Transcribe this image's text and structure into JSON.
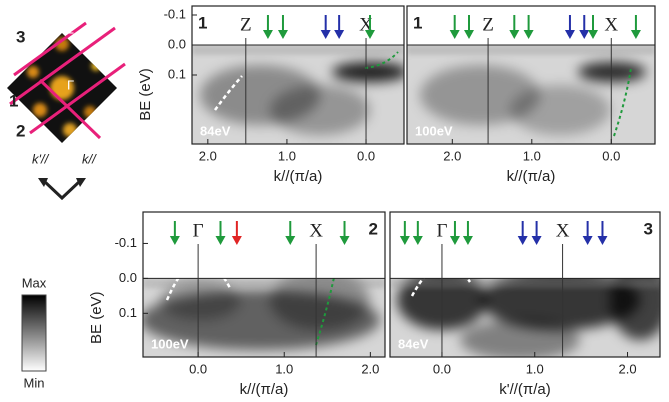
{
  "inset": {
    "cuts": [
      "3",
      "1",
      "2"
    ],
    "points": [
      "Z",
      "X",
      "Γ"
    ],
    "k_perp": "k'//",
    "k_par": "k//"
  },
  "colorbar": {
    "max": "Max",
    "min": "Min"
  },
  "chart_data": [
    {
      "type": "arpes",
      "panel": "1",
      "energy": "84eV",
      "xlabel": "k//(π/a)",
      "ylabel": "BE (eV)",
      "xlim": [
        2.2,
        -0.48
      ],
      "xticks": [
        {
          "value": 2,
          "label": "2.0"
        },
        {
          "value": 1,
          "label": "1.0"
        },
        {
          "value": 0,
          "label": "0.0"
        }
      ],
      "ylim": [
        -0.13,
        0.33
      ],
      "yticks": [
        -0.1,
        {
          "value": 0,
          "label": "0.0"
        },
        0.1
      ],
      "points": [
        {
          "label": "Z",
          "x": 1.52
        },
        {
          "label": "X",
          "x": 0
        }
      ],
      "arrows": [
        {
          "x": 1.24,
          "color": "#1f9a3c"
        },
        {
          "x": 1.05,
          "color": "#1f9a3c"
        },
        {
          "x": 0.51,
          "color": "#2430a8"
        },
        {
          "x": 0.34,
          "color": "#2430a8"
        },
        {
          "x": -0.05,
          "color": "#1f9a3c"
        }
      ]
    },
    {
      "type": "arpes",
      "panel": "1",
      "energy": "100eV",
      "xlabel": "k//(π/a)",
      "xlim": [
        2.57,
        -0.55
      ],
      "xticks": [
        {
          "value": 2,
          "label": "2.0"
        },
        {
          "value": 1,
          "label": "1.0"
        },
        {
          "value": 0,
          "label": "0.0"
        }
      ],
      "ylim": [
        -0.13,
        0.33
      ],
      "points": [
        {
          "label": "Z",
          "x": 1.55
        },
        {
          "label": "X",
          "x": 0
        }
      ],
      "arrows": [
        {
          "x": 1.97,
          "color": "#1f9a3c"
        },
        {
          "x": 1.79,
          "color": "#1f9a3c"
        },
        {
          "x": 1.22,
          "color": "#1f9a3c"
        },
        {
          "x": 1.04,
          "color": "#1f9a3c"
        },
        {
          "x": 0.52,
          "color": "#2430a8"
        },
        {
          "x": 0.34,
          "color": "#2430a8"
        },
        {
          "x": 0.23,
          "color": "#1f9a3c"
        },
        {
          "x": -0.31,
          "color": "#1f9a3c"
        }
      ]
    },
    {
      "type": "arpes",
      "panel": "2",
      "energy": "100eV",
      "xlabel": "k//(π/a)",
      "ylabel": "BE (eV)",
      "xlim": [
        -0.64,
        2.17
      ],
      "xticks": [
        {
          "value": 0,
          "label": "0.0"
        },
        {
          "value": 1,
          "label": "1.0"
        },
        {
          "value": 2,
          "label": "2.0"
        }
      ],
      "ylim": [
        -0.19,
        0.225
      ],
      "yticks": [
        -0.1,
        {
          "value": 0,
          "label": "0.0"
        },
        0.1
      ],
      "points": [
        {
          "label": "Γ",
          "x": 0
        },
        {
          "label": "X",
          "x": 1.37
        }
      ],
      "arrows": [
        {
          "x": -0.27,
          "color": "#1f9a3c"
        },
        {
          "x": 0.26,
          "color": "#1f9a3c"
        },
        {
          "x": 0.45,
          "color": "#e02424"
        },
        {
          "x": 1.07,
          "color": "#1f9a3c"
        },
        {
          "x": 1.7,
          "color": "#1f9a3c"
        }
      ]
    },
    {
      "type": "arpes",
      "panel": "3",
      "energy": "84eV",
      "xlabel": "k'//(π/a)",
      "xlim": [
        -0.56,
        2.35
      ],
      "xticks": [
        {
          "value": 0,
          "label": "0.0"
        },
        {
          "value": 1,
          "label": "1.0"
        },
        {
          "value": 2,
          "label": "2.0"
        }
      ],
      "ylim": [
        -0.19,
        0.225
      ],
      "points": [
        {
          "label": "Γ",
          "x": 0
        },
        {
          "label": "X",
          "x": 1.3
        }
      ],
      "arrows": [
        {
          "x": -0.4,
          "color": "#1f9a3c"
        },
        {
          "x": -0.26,
          "color": "#1f9a3c"
        },
        {
          "x": 0.14,
          "color": "#1f9a3c"
        },
        {
          "x": 0.28,
          "color": "#1f9a3c"
        },
        {
          "x": 0.87,
          "color": "#2430a8"
        },
        {
          "x": 1.02,
          "color": "#2430a8"
        },
        {
          "x": 1.57,
          "color": "#2430a8"
        },
        {
          "x": 1.73,
          "color": "#2430a8"
        }
      ]
    }
  ]
}
